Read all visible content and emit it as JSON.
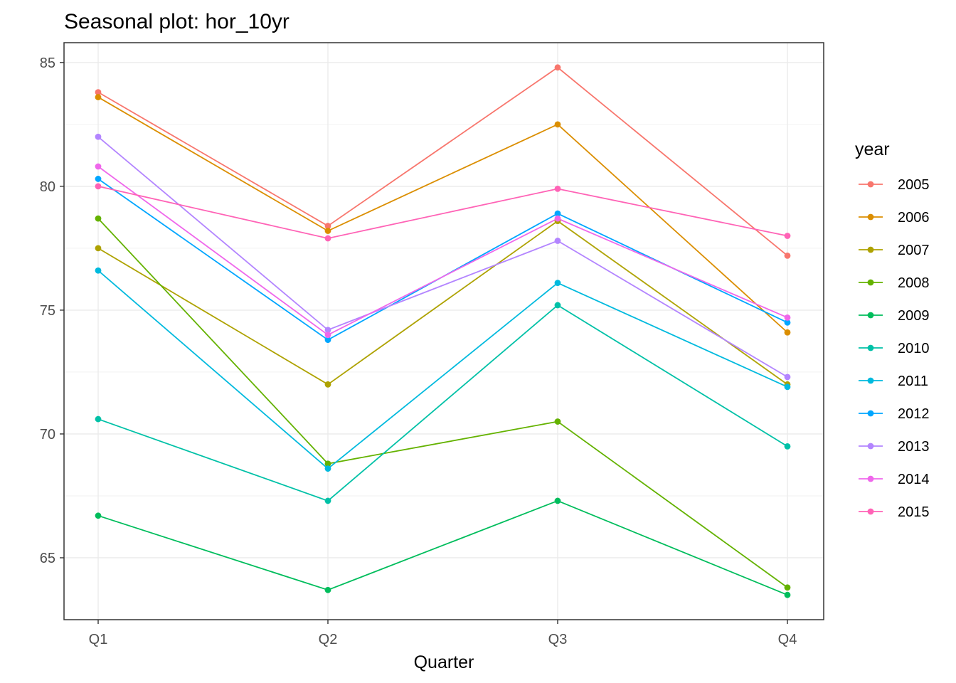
{
  "chart_data": {
    "type": "line",
    "title": "Seasonal plot: hor_10yr",
    "xlabel": "Quarter",
    "ylabel": "",
    "categories": [
      "Q1",
      "Q2",
      "Q3",
      "Q4"
    ],
    "ylim": [
      62.5,
      85.8
    ],
    "yticks": [
      65,
      70,
      75,
      80,
      85
    ],
    "grid": true,
    "legend": {
      "title": "year",
      "position": "right"
    },
    "series": [
      {
        "name": "2005",
        "color": "#F8766D",
        "values": [
          83.8,
          78.4,
          84.8,
          77.2
        ]
      },
      {
        "name": "2006",
        "color": "#DB8E00",
        "values": [
          83.6,
          78.2,
          82.5,
          74.1
        ]
      },
      {
        "name": "2007",
        "color": "#AEA200",
        "values": [
          77.5,
          72.0,
          78.6,
          72.0
        ]
      },
      {
        "name": "2008",
        "color": "#64B200",
        "values": [
          78.7,
          68.8,
          70.5,
          63.8
        ]
      },
      {
        "name": "2009",
        "color": "#00BD5C",
        "values": [
          66.7,
          63.7,
          67.3,
          63.5
        ]
      },
      {
        "name": "2010",
        "color": "#00C1A7",
        "values": [
          70.6,
          67.3,
          75.2,
          69.5
        ]
      },
      {
        "name": "2011",
        "color": "#00BADE",
        "values": [
          76.6,
          68.6,
          76.1,
          71.9
        ]
      },
      {
        "name": "2012",
        "color": "#00A6FF",
        "values": [
          80.3,
          73.8,
          78.9,
          74.5
        ]
      },
      {
        "name": "2013",
        "color": "#B385FF",
        "values": [
          82.0,
          74.2,
          77.8,
          72.3
        ]
      },
      {
        "name": "2014",
        "color": "#EF67EB",
        "values": [
          80.8,
          74.0,
          78.7,
          74.7
        ]
      },
      {
        "name": "2015",
        "color": "#FF63B6",
        "values": [
          80.0,
          77.9,
          79.9,
          78.0
        ]
      }
    ]
  }
}
